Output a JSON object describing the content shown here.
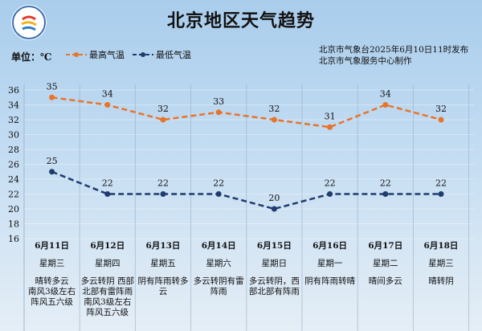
{
  "header": {
    "title": "北京地区天气趋势",
    "unit": "单位：℃",
    "issuer_line1": "北京市气象台2025年6月10日11时发布",
    "issuer_line2": "北京市气象服务中心制作",
    "logo_icon": "beijing-meteorological-logo"
  },
  "chart_data": {
    "type": "line",
    "title": "北京地区天气趋势",
    "ylabel": "单位：℃",
    "ylim": [
      16,
      36
    ],
    "yticks": [
      16,
      18,
      20,
      22,
      24,
      26,
      28,
      30,
      32,
      34,
      36
    ],
    "grid": true,
    "legend_placement": "top-left",
    "categories": [
      "6月11日",
      "6月12日",
      "6月13日",
      "6月14日",
      "6月15日",
      "6月16日",
      "6月17日",
      "6月18日"
    ],
    "weekdays": [
      "星期三",
      "星期四",
      "星期五",
      "星期六",
      "星期日",
      "星期一",
      "星期二",
      "星期三"
    ],
    "descriptions": [
      "晴转多云\n南风3级左右\n阵风五六级",
      "多云转阴 西部北部有雷阵雨\n南风3级左右\n阵风五六级",
      "阴有阵雨转多云",
      "多云转阴有雷阵雨",
      "多云转阴，西部北部有阵雨",
      "阴有阵雨转晴",
      "晴间多云",
      "晴转阴"
    ],
    "series": [
      {
        "name": "最高气温",
        "values": [
          35,
          34,
          32,
          33,
          32,
          31,
          34,
          32
        ],
        "color": "#e8742a"
      },
      {
        "name": "最低气温",
        "values": [
          25,
          22,
          22,
          22,
          20,
          22,
          22,
          22
        ],
        "color": "#1f3c6e"
      }
    ]
  }
}
